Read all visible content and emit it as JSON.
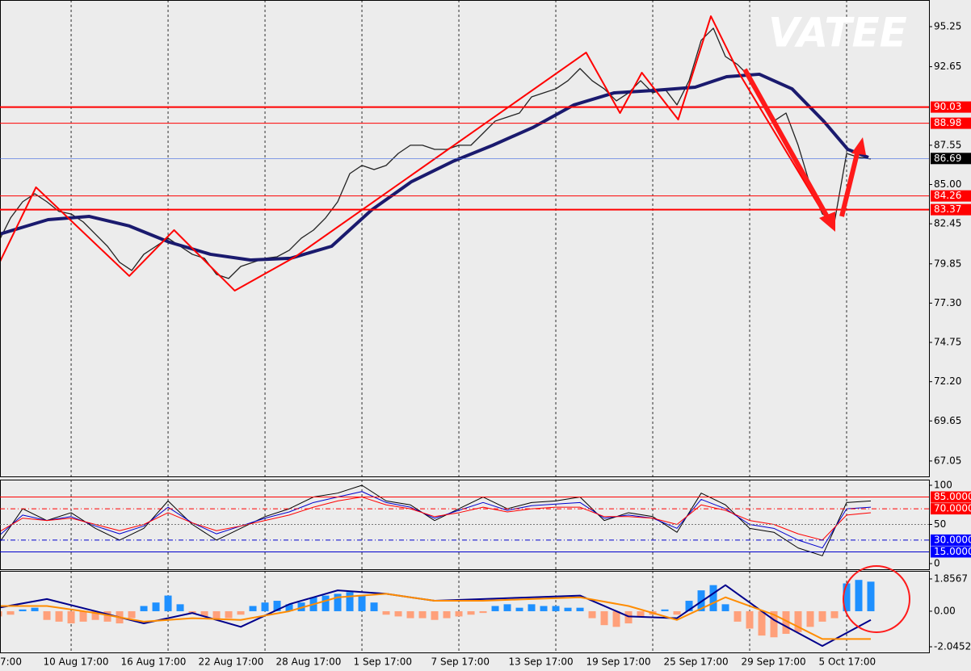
{
  "chart_data": [
    {
      "type": "line",
      "annotation": "VATEE",
      "ylim": [
        66.05,
        96.98
      ],
      "yticks": [
        95.25,
        92.65,
        87.55,
        {
          "value": 85,
          "label": "85.00"
        },
        82.45,
        79.85,
        {
          "value": 77.3,
          "label": "77.30"
        },
        74.75,
        {
          "value": 72.2,
          "label": "72.20"
        },
        69.65,
        67.05
      ],
      "levels": [
        {
          "value": 90.03,
          "color": "#ff0000",
          "box": "#ff0000",
          "width": 2
        },
        {
          "value": 88.98,
          "color": "#ff0000",
          "box": "#ff0000",
          "width": 1
        },
        {
          "value": 86.69,
          "color": "#4169e1",
          "box": "#000000",
          "width": 0.6
        },
        {
          "value": 84.26,
          "color": "#ff0000",
          "box": "#ff0000",
          "width": 1
        },
        {
          "value": 83.37,
          "color": "#ff0000",
          "box": "#ff0000",
          "width": 2
        }
      ],
      "series": [
        {
          "color": "#222222",
          "width": 1.3,
          "x": [
            0,
            1,
            2,
            3,
            4,
            5,
            6,
            7,
            8,
            9,
            10,
            11,
            12,
            13,
            14,
            15,
            16,
            17,
            18,
            19,
            20,
            21,
            22,
            23,
            24,
            25,
            26,
            27,
            28,
            29,
            30,
            31,
            32,
            33,
            34,
            35,
            36,
            37,
            38,
            39,
            40,
            41,
            42,
            43,
            44,
            45,
            46,
            47,
            48,
            49,
            50,
            51,
            52,
            53,
            54,
            55,
            56,
            57,
            58,
            59,
            60,
            61,
            62,
            63,
            64,
            65,
            66,
            67,
            68,
            69,
            70,
            71,
            72
          ],
          "values": [
            81.26,
            82.83,
            83.88,
            84.4,
            83.88,
            83.25,
            83.09,
            82.57,
            81.78,
            80.99,
            79.95,
            79.42,
            80.47,
            80.99,
            81.52,
            80.99,
            80.47,
            80.21,
            79.16,
            78.9,
            79.68,
            79.95,
            80.21,
            80.31,
            80.73,
            81.52,
            82.04,
            82.83,
            83.88,
            85.71,
            86.24,
            85.97,
            86.24,
            87.02,
            87.55,
            87.55,
            87.28,
            87.28,
            87.55,
            87.55,
            88.33,
            89.12,
            89.38,
            89.64,
            90.69,
            90.95,
            91.21,
            91.74,
            92.53,
            91.74,
            91.21,
            90.43,
            90.95,
            91.74,
            90.95,
            91.21,
            90.17,
            91.74,
            94.36,
            95.15,
            93.31,
            92.79,
            92.0,
            90.69,
            89.12,
            89.64,
            87.55,
            84.93,
            83.09,
            82.57,
            87.02,
            86.76,
            86.66
          ]
        },
        {
          "color": "#1a1a6e",
          "width": 4,
          "x": [
            0.1,
            4.1,
            7.5,
            10.8,
            14.1,
            17.5,
            20.8,
            24.1,
            27.5,
            30.8,
            34.1,
            37.5,
            40.8,
            44.1,
            47.5,
            50.8,
            54.1,
            57.5,
            60.1,
            62.8,
            65.5,
            68.1,
            70.1,
            71.8
          ],
          "values": [
            81.78,
            82.72,
            82.93,
            82.31,
            81.26,
            80.47,
            80.1,
            80.21,
            80.99,
            83.35,
            85.19,
            86.5,
            87.55,
            88.7,
            90.17,
            90.95,
            91.11,
            91.32,
            92.0,
            92.16,
            91.21,
            89.12,
            87.28,
            86.76
          ]
        },
        {
          "color": "#ff0000",
          "width": 2,
          "x": [
            0.1,
            3.1,
            10.8,
            14.5,
            19.5,
            24.5,
            48.5,
            51.3,
            53.1,
            56.1,
            58.8,
            61.1,
            68.8
          ],
          "values": [
            79.95,
            84.82,
            79.06,
            82.04,
            78.11,
            80.31,
            93.57,
            89.64,
            92.26,
            89.22,
            95.93,
            92.26,
            82.2
          ]
        }
      ]
    },
    {
      "type": "line",
      "ylim": [
        -7.2,
        107.2
      ],
      "yticks": [
        100,
        50,
        0
      ],
      "levels": [
        {
          "value": 85,
          "label": "85.0000",
          "color": "#ff0000",
          "box": "#ff0000",
          "width": 1,
          "dash": "none"
        },
        {
          "value": 70,
          "label": "70.0000",
          "color": "#ff0000",
          "box": "#ff0000",
          "width": 1,
          "dash": "6,3,1,3"
        },
        {
          "value": 50,
          "color": "#777777",
          "width": 1,
          "dash": "2,2"
        },
        {
          "value": 30,
          "label": "30.0000",
          "color": "#0000cd",
          "box": "#0000ff",
          "width": 1,
          "dash": "6,3,1,3"
        },
        {
          "value": 15,
          "label": "15.0000",
          "color": "#0000cd",
          "box": "#0000ff",
          "width": 1,
          "dash": "none"
        }
      ],
      "series": [
        {
          "color": "#000000",
          "width": 1,
          "x": [
            0,
            2,
            4,
            6,
            8,
            10,
            12,
            14,
            16,
            18,
            20,
            22,
            24,
            26,
            28,
            30,
            32,
            34,
            36,
            38,
            40,
            42,
            44,
            46,
            48,
            50,
            52,
            54,
            56,
            58,
            60,
            62,
            64,
            66,
            68,
            70,
            72
          ],
          "values": [
            25,
            70,
            55,
            65,
            45,
            30,
            45,
            80,
            50,
            30,
            45,
            60,
            70,
            85,
            90,
            100,
            80,
            75,
            55,
            70,
            85,
            70,
            78,
            80,
            85,
            55,
            65,
            60,
            40,
            90,
            75,
            45,
            40,
            20,
            10,
            78,
            80
          ]
        },
        {
          "color": "#0000cd",
          "width": 1,
          "x": [
            0,
            2,
            4,
            6,
            8,
            10,
            12,
            14,
            16,
            18,
            20,
            22,
            24,
            26,
            28,
            30,
            32,
            34,
            36,
            38,
            40,
            42,
            44,
            46,
            48,
            50,
            52,
            54,
            56,
            58,
            60,
            62,
            64,
            66,
            68,
            70,
            72
          ],
          "values": [
            35,
            62,
            55,
            60,
            48,
            38,
            48,
            72,
            52,
            38,
            48,
            58,
            66,
            78,
            85,
            92,
            78,
            72,
            58,
            68,
            78,
            68,
            74,
            76,
            78,
            58,
            62,
            58,
            45,
            82,
            70,
            50,
            45,
            30,
            20,
            70,
            72
          ]
        },
        {
          "color": "#ff0000",
          "width": 1,
          "x": [
            0,
            2,
            4,
            6,
            8,
            10,
            12,
            14,
            16,
            18,
            20,
            22,
            24,
            26,
            28,
            30,
            32,
            34,
            36,
            38,
            40,
            42,
            44,
            46,
            48,
            50,
            52,
            54,
            56,
            58,
            60,
            62,
            64,
            66,
            68,
            70,
            72
          ],
          "values": [
            40,
            58,
            55,
            58,
            50,
            42,
            50,
            65,
            52,
            42,
            48,
            55,
            62,
            72,
            80,
            85,
            75,
            70,
            60,
            65,
            72,
            66,
            70,
            72,
            72,
            60,
            60,
            58,
            50,
            75,
            68,
            55,
            50,
            38,
            30,
            62,
            65
          ]
        }
      ]
    },
    {
      "type": "bar",
      "xlim": [
        0.13,
        76.8
      ],
      "xgrid": [
        6,
        14,
        22,
        30,
        38,
        46,
        54,
        62,
        70
      ],
      "xticks": [
        {
          "value": 0.13,
          "label": "7:00"
        },
        {
          "value": 3.7,
          "label": "10 Aug 17:00"
        },
        {
          "value": 10.1,
          "label": "16 Aug 17:00"
        },
        {
          "value": 16.5,
          "label": "22 Aug 17:00"
        },
        {
          "value": 22.9,
          "label": "28 Aug 17:00"
        },
        {
          "value": 29.3,
          "label": "1 Sep 17:00"
        },
        {
          "value": 35.7,
          "label": "7 Sep 17:00"
        },
        {
          "value": 42.1,
          "label": "13 Sep 17:00"
        },
        {
          "value": 48.5,
          "label": "19 Sep 17:00"
        },
        {
          "value": 54.9,
          "label": "25 Sep 17:00"
        },
        {
          "value": 61.3,
          "label": "29 Sep 17:00"
        },
        {
          "value": 67.7,
          "label": "5 Oct 17:00"
        }
      ],
      "ylim": [
        -2.37,
        2.32
      ],
      "yticks": [
        1.8567,
        {
          "value": 0,
          "label": "0.00"
        },
        -2.0452
      ],
      "histogram": {
        "positive": "#1e90ff",
        "negative": "#ffa07a",
        "x": [
          0,
          1,
          2,
          3,
          4,
          5,
          6,
          7,
          8,
          9,
          10,
          11,
          12,
          13,
          14,
          15,
          16,
          17,
          18,
          19,
          20,
          21,
          22,
          23,
          24,
          25,
          26,
          27,
          28,
          29,
          30,
          31,
          32,
          33,
          34,
          35,
          36,
          37,
          38,
          39,
          40,
          41,
          42,
          43,
          44,
          45,
          46,
          47,
          48,
          49,
          50,
          51,
          52,
          53,
          54,
          55,
          56,
          57,
          58,
          59,
          60,
          61,
          62,
          63,
          64,
          65,
          66,
          67,
          68,
          69,
          70,
          71,
          72
        ],
        "values": [
          -0.3,
          -0.2,
          0.1,
          0.2,
          -0.5,
          -0.6,
          -0.7,
          -0.6,
          -0.5,
          -0.6,
          -0.7,
          -0.4,
          0.3,
          0.5,
          0.9,
          0.4,
          -0.1,
          -0.3,
          -0.5,
          -0.4,
          -0.2,
          0.3,
          0.5,
          0.6,
          0.4,
          0.5,
          0.8,
          0.9,
          1.0,
          1.1,
          0.9,
          0.5,
          -0.2,
          -0.3,
          -0.4,
          -0.4,
          -0.5,
          -0.4,
          -0.3,
          -0.2,
          -0.1,
          0.3,
          0.4,
          0.2,
          0.4,
          0.3,
          0.3,
          0.2,
          0.2,
          -0.4,
          -0.8,
          -0.9,
          -0.7,
          -0.3,
          -0.2,
          0.1,
          -0.2,
          0.6,
          1.2,
          1.5,
          0.4,
          -0.6,
          -1.0,
          -1.4,
          -1.5,
          -1.3,
          -1.2,
          -0.9,
          -0.6,
          -0.4,
          1.6,
          1.8,
          1.7
        ]
      },
      "series": [
        {
          "color": "#00008b",
          "width": 2,
          "x": [
            0,
            4,
            8,
            12,
            16,
            20,
            24,
            28,
            32,
            36,
            40,
            44,
            48,
            52,
            56,
            60,
            64,
            68,
            72
          ],
          "values": [
            0.2,
            0.7,
            0.0,
            -0.7,
            -0.1,
            -0.9,
            0.4,
            1.2,
            1.0,
            0.6,
            0.7,
            0.8,
            0.9,
            -0.3,
            -0.4,
            1.5,
            -0.5,
            -2.0,
            -0.5
          ]
        },
        {
          "color": "#ff8c00",
          "width": 2,
          "x": [
            0,
            4,
            8,
            12,
            16,
            20,
            24,
            28,
            32,
            36,
            40,
            44,
            48,
            52,
            56,
            60,
            64,
            68,
            72
          ],
          "values": [
            0.3,
            0.3,
            -0.1,
            -0.6,
            -0.4,
            -0.5,
            0.0,
            0.8,
            1.0,
            0.6,
            0.6,
            0.7,
            0.8,
            0.3,
            -0.5,
            0.8,
            -0.2,
            -1.6,
            -1.6
          ]
        }
      ]
    }
  ]
}
